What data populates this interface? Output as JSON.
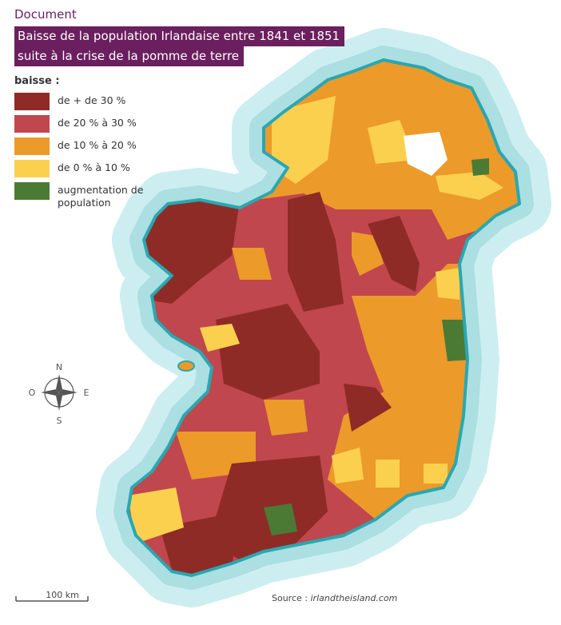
{
  "header": {
    "label": "Document",
    "title_lines": [
      "Baisse de la population Irlandaise entre 1841 et 1851",
      "suite à la crise de la pomme de terre"
    ]
  },
  "legend": {
    "title": "baisse :",
    "items": [
      {
        "label": "de + de 30 %",
        "color": "#8e2b26"
      },
      {
        "label": "de 20 % à 30 %",
        "color": "#c0474d"
      },
      {
        "label": "de 10 % à 20 %",
        "color": "#ec9a2a"
      },
      {
        "label": "de 0 % à 10 %",
        "color": "#fcd04f"
      },
      {
        "label": "augmentation de population",
        "color": "#4b7a35"
      }
    ]
  },
  "compass": {
    "north": "N",
    "south": "S",
    "east": "E",
    "west": "O"
  },
  "scale": "100 km",
  "source": {
    "prefix": "Source : ",
    "site": "irlandtheisland.com"
  }
}
